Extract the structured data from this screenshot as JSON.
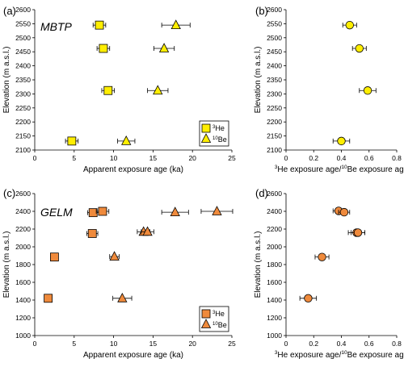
{
  "colors": {
    "mbtp_fill": "#ffee00",
    "gelm_fill": "#ef8a3c",
    "stroke": "#000000"
  },
  "panels": [
    {
      "id": "a",
      "label": "(a)",
      "site": "MBTP"
    },
    {
      "id": "b",
      "label": "(b)",
      "site": ""
    },
    {
      "id": "c",
      "label": "(c)",
      "site": "GELM"
    },
    {
      "id": "d",
      "label": "(d)",
      "site": ""
    }
  ],
  "legend": {
    "he_prefix": "3",
    "he_label": "He",
    "be_prefix": "10",
    "be_label": "Be"
  },
  "chart_data": [
    {
      "panel": "a",
      "type": "scatter",
      "title": "MBTP",
      "xlabel": "Apparent exposure age (ka)",
      "ylabel": "Elevation (m a.s.l.)",
      "xlim": [
        0,
        25
      ],
      "ylim": [
        2100,
        2600
      ],
      "xticks": [
        0,
        5,
        10,
        15,
        20,
        25
      ],
      "yticks": [
        2100,
        2150,
        2200,
        2250,
        2300,
        2350,
        2400,
        2450,
        2500,
        2550,
        2600
      ],
      "legend_position": "bottom-right",
      "series": [
        {
          "name": "3He",
          "marker": "square",
          "points": [
            {
              "x": 8.2,
              "y": 2545,
              "xerr": 0.8
            },
            {
              "x": 8.7,
              "y": 2462,
              "xerr": 0.8
            },
            {
              "x": 9.3,
              "y": 2312,
              "xerr": 0.8
            },
            {
              "x": 4.7,
              "y": 2132,
              "xerr": 0.8
            }
          ]
        },
        {
          "name": "10Be",
          "marker": "triangle",
          "points": [
            {
              "x": 17.9,
              "y": 2545,
              "xerr": 1.8
            },
            {
              "x": 16.4,
              "y": 2462,
              "xerr": 1.3
            },
            {
              "x": 15.6,
              "y": 2312,
              "xerr": 1.3
            },
            {
              "x": 11.6,
              "y": 2132,
              "xerr": 1.1
            }
          ]
        }
      ]
    },
    {
      "panel": "b",
      "type": "scatter",
      "xlabel_prefix": "3",
      "xlabel_mid": "He exposure age/",
      "xlabel_sup2": "10",
      "xlabel_suffix": "Be exposure age",
      "ylabel": "Elevation (m a.s.l.)",
      "xlim": [
        0,
        0.8
      ],
      "ylim": [
        2100,
        2600
      ],
      "xticks": [
        0,
        0.2,
        0.4,
        0.6,
        0.8
      ],
      "xticklabels": [
        "0",
        "0.2",
        "0.4",
        "0.6",
        "0.8"
      ],
      "yticks": [
        2100,
        2150,
        2200,
        2250,
        2300,
        2350,
        2400,
        2450,
        2500,
        2550,
        2600
      ],
      "series": [
        {
          "name": "ratio",
          "marker": "circle",
          "points": [
            {
              "x": 0.46,
              "y": 2545,
              "xerr": 0.05
            },
            {
              "x": 0.53,
              "y": 2462,
              "xerr": 0.05
            },
            {
              "x": 0.59,
              "y": 2312,
              "xerr": 0.06
            },
            {
              "x": 0.4,
              "y": 2132,
              "xerr": 0.06
            }
          ]
        }
      ]
    },
    {
      "panel": "c",
      "type": "scatter",
      "title": "GELM",
      "xlabel": "Apparent exposure age (ka)",
      "ylabel": "Elevation (m a.s.l.)",
      "xlim": [
        0,
        25
      ],
      "ylim": [
        1000,
        2600
      ],
      "xticks": [
        0,
        5,
        10,
        15,
        20,
        25
      ],
      "yticks": [
        1000,
        1200,
        1400,
        1600,
        1800,
        2000,
        2200,
        2400,
        2600
      ],
      "legend_position": "bottom-right",
      "series": [
        {
          "name": "3He",
          "marker": "square",
          "points": [
            {
              "x": 7.4,
              "y": 2385,
              "xerr": 0.7
            },
            {
              "x": 8.6,
              "y": 2400,
              "xerr": 0.8
            },
            {
              "x": 7.3,
              "y": 2150,
              "xerr": 0.7
            },
            {
              "x": 2.5,
              "y": 1885,
              "xerr": 0.3
            },
            {
              "x": 1.7,
              "y": 1420,
              "xerr": 0.4
            }
          ]
        },
        {
          "name": "10Be",
          "marker": "triangle",
          "points": [
            {
              "x": 17.8,
              "y": 2390,
              "xerr": 1.7
            },
            {
              "x": 23.1,
              "y": 2400,
              "xerr": 2.0
            },
            {
              "x": 13.8,
              "y": 2170,
              "xerr": 0.8
            },
            {
              "x": 14.3,
              "y": 2170,
              "xerr": 0.8
            },
            {
              "x": 10.1,
              "y": 1890,
              "xerr": 0.6
            },
            {
              "x": 11.1,
              "y": 1420,
              "xerr": 1.2
            }
          ]
        }
      ]
    },
    {
      "panel": "d",
      "type": "scatter",
      "xlabel_prefix": "3",
      "xlabel_mid": "He exposure age/",
      "xlabel_sup2": "10",
      "xlabel_suffix": "Be exposure age",
      "ylabel": "Elevation (m a.s.l.)",
      "xlim": [
        0,
        0.8
      ],
      "ylim": [
        1000,
        2600
      ],
      "xticks": [
        0,
        0.2,
        0.4,
        0.6,
        0.8
      ],
      "xticklabels": [
        "0",
        "0.2",
        "0.4",
        "0.6",
        "0.8"
      ],
      "yticks": [
        1000,
        1200,
        1400,
        1600,
        1800,
        2000,
        2200,
        2400,
        2600
      ],
      "series": [
        {
          "name": "ratio",
          "marker": "circle",
          "points": [
            {
              "x": 0.38,
              "y": 2405,
              "xerr": 0.04
            },
            {
              "x": 0.42,
              "y": 2390,
              "xerr": 0.04
            },
            {
              "x": 0.51,
              "y": 2160,
              "xerr": 0.06
            },
            {
              "x": 0.52,
              "y": 2160,
              "xerr": 0.05
            },
            {
              "x": 0.26,
              "y": 1885,
              "xerr": 0.05
            },
            {
              "x": 0.16,
              "y": 1420,
              "xerr": 0.06
            }
          ]
        }
      ]
    }
  ]
}
